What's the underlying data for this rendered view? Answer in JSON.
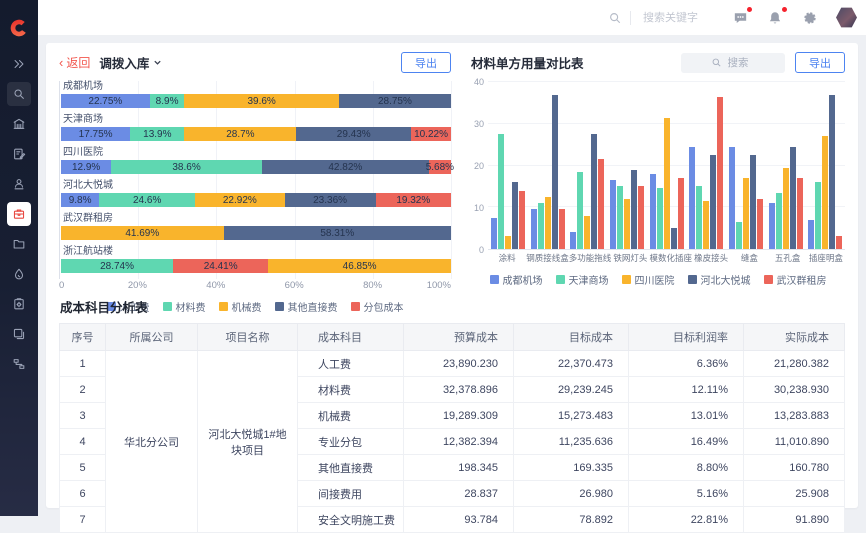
{
  "topbar": {
    "search_placeholder": "搜索关键字"
  },
  "sidebar": {
    "items": [
      "collapse",
      "search",
      "building",
      "document-edit",
      "user",
      "project-cost",
      "folder",
      "droplet",
      "clipboard",
      "devices",
      "workflow"
    ],
    "active_item": "project-cost"
  },
  "left_panel": {
    "back_label": "返回",
    "title": "调拨入库",
    "export_label": "导出"
  },
  "right_panel": {
    "title": "材料单方用量对比表",
    "search_placeholder": "搜索",
    "export_label": "导出"
  },
  "colors": {
    "palette": [
      "#6b8ce4",
      "#5fd7b1",
      "#f9b42c",
      "#53688f",
      "#ec655a"
    ],
    "accent_blue": "#4b82f0",
    "back_red": "#f2574e",
    "sidebar_bg": "#141b2d",
    "notification_dot": "#f5222d"
  },
  "chart_data": [
    {
      "type": "bar",
      "orientation": "horizontal",
      "stacked": true,
      "unit": "%",
      "xlim": [
        0,
        100
      ],
      "x_ticks": [
        "0",
        "20%",
        "40%",
        "60%",
        "80%",
        "100%"
      ],
      "legend": [
        "人工费",
        "材料费",
        "机械费",
        "其他直接费",
        "分包成本"
      ],
      "legend_position": "bottom",
      "grid": true,
      "rows": [
        {
          "category": "成都机场",
          "segments": [
            [
              "人工费",
              22.75
            ],
            [
              "材料费",
              8.9
            ],
            [
              "机械费",
              39.6
            ],
            [
              "其他直接费",
              28.75
            ]
          ]
        },
        {
          "category": "天津商场",
          "segments": [
            [
              "人工费",
              17.75
            ],
            [
              "材料费",
              13.9
            ],
            [
              "机械费",
              28.7
            ],
            [
              "其他直接费",
              29.43
            ],
            [
              "分包成本",
              10.22
            ]
          ]
        },
        {
          "category": "四川医院",
          "segments": [
            [
              "人工费",
              12.9
            ],
            [
              "材料费",
              38.6
            ],
            [
              "其他直接费",
              42.82
            ],
            [
              "分包成本",
              5.68
            ]
          ]
        },
        {
          "category": "河北大悦城",
          "segments": [
            [
              "人工费",
              9.8
            ],
            [
              "材料费",
              24.6
            ],
            [
              "机械费",
              22.92
            ],
            [
              "其他直接费",
              23.36
            ],
            [
              "分包成本",
              19.32
            ]
          ]
        },
        {
          "category": "武汉群租房",
          "segments": [
            [
              "机械费",
              41.69
            ],
            [
              "其他直接费",
              58.31
            ]
          ]
        },
        {
          "category": "浙江航站楼",
          "segments": [
            [
              "材料费",
              28.74
            ],
            [
              "分包成本",
              24.41
            ],
            [
              "机械费",
              46.85
            ]
          ]
        }
      ]
    },
    {
      "type": "bar",
      "grouped": true,
      "title": "材料单方用量对比表",
      "ylim": [
        0,
        40
      ],
      "y_ticks": [
        0,
        10,
        20,
        30,
        40
      ],
      "grid": true,
      "legend_position": "bottom",
      "categories": [
        "涂料",
        "钢质接线盒",
        "多功能拖线",
        "铁网灯头",
        "模数化插座",
        "橡皮接头",
        "缝盒",
        "五孔盒",
        "插座明盒"
      ],
      "series": [
        {
          "name": "成都机场",
          "values": [
            7.5,
            9.5,
            4,
            16.5,
            18,
            24.5,
            24.5,
            11,
            7
          ]
        },
        {
          "name": "天津商场",
          "values": [
            27.5,
            11,
            18.5,
            15,
            14.5,
            15,
            6.5,
            13.5,
            16
          ]
        },
        {
          "name": "四川医院",
          "values": [
            3,
            12.5,
            8,
            12,
            31.5,
            11.5,
            17,
            19.5,
            27
          ]
        },
        {
          "name": "河北大悦城",
          "values": [
            16,
            37,
            27.5,
            19,
            5,
            22.5,
            22.5,
            24.5,
            37
          ]
        },
        {
          "name": "武汉群租房",
          "values": [
            14,
            9.5,
            21.5,
            15,
            17,
            36.5,
            12,
            17,
            3
          ]
        }
      ]
    }
  ],
  "table": {
    "title": "成本科目分析表",
    "columns": [
      "序号",
      "所属公司",
      "项目名称",
      "成本科目",
      "预算成本",
      "目标成本",
      "目标利润率",
      "实际成本"
    ],
    "company": "华北分公司",
    "project": "河北大悦城1#地块项目",
    "rows": [
      {
        "no": "1",
        "subject": "人工费",
        "budget": "23,890.230",
        "target": "22,370.473",
        "margin": "6.36%",
        "actual": "21,280.382"
      },
      {
        "no": "2",
        "subject": "材料费",
        "budget": "32,378.896",
        "target": "29,239.245",
        "margin": "12.11%",
        "actual": "30,238.930"
      },
      {
        "no": "3",
        "subject": "机械费",
        "budget": "19,289.309",
        "target": "15,273.483",
        "margin": "13.01%",
        "actual": "13,283.883"
      },
      {
        "no": "4",
        "subject": "专业分包",
        "budget": "12,382.394",
        "target": "11,235.636",
        "margin": "16.49%",
        "actual": "11,010.890"
      },
      {
        "no": "5",
        "subject": "其他直接费",
        "budget": "198.345",
        "target": "169.335",
        "margin": "8.80%",
        "actual": "160.780"
      },
      {
        "no": "6",
        "subject": "间接费用",
        "budget": "28.837",
        "target": "26.980",
        "margin": "5.16%",
        "actual": "25.908"
      },
      {
        "no": "7",
        "subject": "安全文明施工费",
        "budget": "93.784",
        "target": "78.892",
        "margin": "22.81%",
        "actual": "91.890"
      }
    ]
  }
}
